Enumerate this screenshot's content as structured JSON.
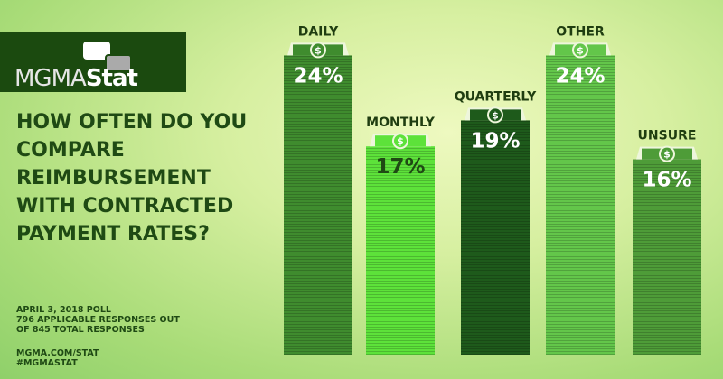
{
  "logo": {
    "text_light": "MGMA",
    "text_bold": "Stat"
  },
  "question": "HOW OFTEN DO YOU COMPARE REIMBURSEMENT WITH CONTRACTED PAYMENT RATES?",
  "poll": {
    "line1": "APRIL 3, 2018 POLL",
    "line2": "796 APPLICABLE RESPONSES OUT",
    "line3": "OF 845 TOTAL RESPONSES"
  },
  "footer": {
    "site": "MGMA.COM/STAT",
    "hashtag": "#MGMASTAT"
  },
  "chart_data": {
    "type": "bar",
    "categories": [
      "DAILY",
      "MONTHLY",
      "QUARTERLY",
      "OTHER",
      "UNSURE"
    ],
    "values": [
      24,
      17,
      19,
      24,
      16
    ],
    "data_labels": [
      "24%",
      "17%",
      "19%",
      "24%",
      "16%"
    ],
    "unit": "%",
    "colors": [
      "#3f8c2e",
      "#5de23a",
      "#1e5a1b",
      "#63c64a",
      "#4e9c38"
    ],
    "label_colors": [
      "#ffffff",
      "#1f4a14",
      "#ffffff",
      "#ffffff",
      "#ffffff"
    ],
    "grid": false,
    "icon": "dollar-bill-icon"
  }
}
